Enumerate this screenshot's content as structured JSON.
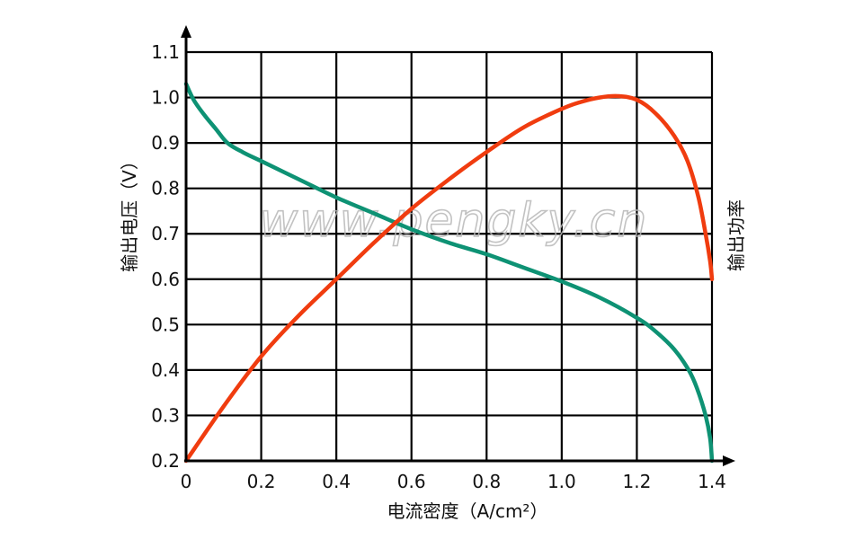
{
  "chart_data": {
    "type": "line",
    "title": "",
    "xlabel": "电流密度（A/cm²）",
    "ylabel": "输出电压（V）",
    "y2label": "输出功率",
    "xlim": [
      0,
      1.4
    ],
    "ylim": [
      0.2,
      1.1
    ],
    "grid": true,
    "legend": "none",
    "x_ticks": [
      "0",
      "0.2",
      "0.4",
      "0.6",
      "0.8",
      "1.0",
      "1.2",
      "1.4"
    ],
    "y_ticks": [
      "0.2",
      "0.3",
      "0.4",
      "0.5",
      "0.6",
      "0.7",
      "0.8",
      "0.9",
      "1.0",
      "1.1"
    ],
    "series": [
      {
        "name": "输出电压",
        "color": "#0e9274",
        "x": [
          0,
          0.02,
          0.05,
          0.08,
          0.11,
          0.15,
          0.2,
          0.3,
          0.4,
          0.5,
          0.6,
          0.7,
          0.8,
          0.9,
          1.0,
          1.1,
          1.2,
          1.25,
          1.3,
          1.338,
          1.36,
          1.383,
          1.395,
          1.4
        ],
        "y": [
          1.03,
          0.995,
          0.96,
          0.93,
          0.9,
          0.88,
          0.86,
          0.82,
          0.78,
          0.745,
          0.71,
          0.68,
          0.655,
          0.625,
          0.595,
          0.56,
          0.515,
          0.485,
          0.445,
          0.4,
          0.36,
          0.3,
          0.25,
          0.2
        ]
      },
      {
        "name": "输出功率",
        "color": "#f03c0f",
        "x": [
          0,
          0.1,
          0.2,
          0.3,
          0.4,
          0.5,
          0.6,
          0.7,
          0.8,
          0.9,
          1.0,
          1.05,
          1.1,
          1.15,
          1.2,
          1.25,
          1.3,
          1.335,
          1.364,
          1.383,
          1.395,
          1.4
        ],
        "y": [
          0.2,
          0.32,
          0.43,
          0.52,
          0.6,
          0.68,
          0.755,
          0.82,
          0.88,
          0.935,
          0.975,
          0.99,
          1.0,
          1.003,
          0.995,
          0.965,
          0.915,
          0.86,
          0.78,
          0.7,
          0.64,
          0.6
        ]
      }
    ],
    "annotations": [
      "www.pengky.cn"
    ]
  },
  "labels": {
    "xlabel": "电流密度（A/cm²）",
    "ylabel": "输出电压（V）",
    "y2label": "输出功率",
    "watermark": "www.pengky.cn"
  }
}
